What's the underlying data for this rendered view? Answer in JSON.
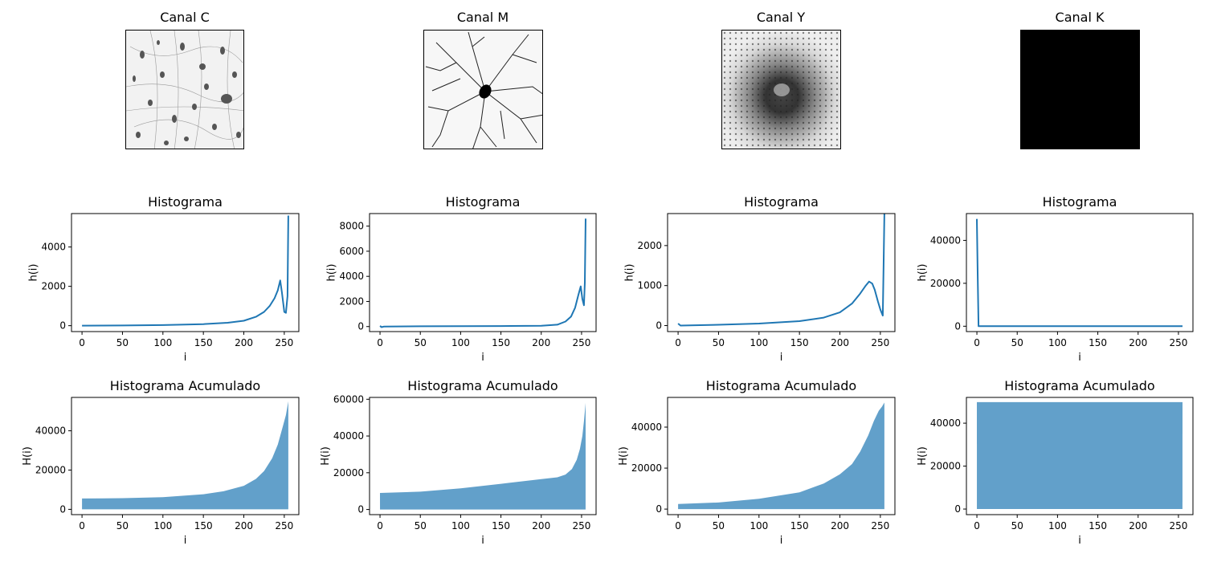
{
  "images": [
    {
      "title": "Canal C",
      "icon": "neuron-cells-thumbnail"
    },
    {
      "title": "Canal M",
      "icon": "neuron-dendrite-thumbnail"
    },
    {
      "title": "Canal Y",
      "icon": "retina-dots-thumbnail"
    },
    {
      "title": "Canal K",
      "icon": "black-square-thumbnail"
    }
  ],
  "colors": {
    "line": "#1f77b4",
    "fill": "#1f77b4",
    "fill_opacity": 0.7
  },
  "chart_data": [
    {
      "type": "line",
      "title": "Histograma",
      "xlabel": "i",
      "ylabel": "h(i)",
      "xlim": [
        -13,
        268
      ],
      "ylim": [
        -300,
        5700
      ],
      "xticks": [
        0,
        50,
        100,
        150,
        200,
        250
      ],
      "yticks": [
        0,
        2000,
        4000
      ],
      "x": [
        0,
        50,
        100,
        150,
        180,
        200,
        215,
        225,
        232,
        238,
        242,
        245,
        247,
        250,
        252,
        254,
        255
      ],
      "y": [
        0,
        10,
        30,
        80,
        150,
        250,
        450,
        700,
        1000,
        1400,
        1800,
        2300,
        1700,
        700,
        650,
        1500,
        5600
      ]
    },
    {
      "type": "line",
      "title": "Histograma",
      "xlabel": "i",
      "ylabel": "h(i)",
      "xlim": [
        -13,
        268
      ],
      "ylim": [
        -400,
        9000
      ],
      "xticks": [
        0,
        50,
        100,
        150,
        200,
        250
      ],
      "yticks": [
        0,
        2000,
        4000,
        6000,
        8000
      ],
      "x": [
        0,
        2,
        5,
        50,
        100,
        150,
        200,
        220,
        230,
        237,
        242,
        246,
        249,
        251,
        253,
        254,
        255
      ],
      "y": [
        50,
        -50,
        0,
        20,
        30,
        40,
        60,
        150,
        400,
        800,
        1500,
        2500,
        3200,
        2200,
        1700,
        3500,
        8600
      ]
    },
    {
      "type": "line",
      "title": "Histograma",
      "xlabel": "i",
      "ylabel": "h(i)",
      "xlim": [
        -13,
        268
      ],
      "ylim": [
        -150,
        2800
      ],
      "xticks": [
        0,
        50,
        100,
        150,
        200,
        250
      ],
      "yticks": [
        0,
        1000,
        2000
      ],
      "x": [
        0,
        3,
        50,
        100,
        150,
        180,
        200,
        215,
        225,
        232,
        236,
        240,
        243,
        247,
        250,
        253,
        254,
        255
      ],
      "y": [
        50,
        0,
        20,
        50,
        110,
        200,
        330,
        550,
        800,
        1000,
        1100,
        1050,
        900,
        600,
        400,
        250,
        1500,
        2800
      ]
    },
    {
      "type": "line",
      "title": "Histograma",
      "xlabel": "i",
      "ylabel": "h(i)",
      "xlim": [
        -13,
        268
      ],
      "ylim": [
        -2500,
        52500
      ],
      "xticks": [
        0,
        50,
        100,
        150,
        200,
        250
      ],
      "yticks": [
        0,
        20000,
        40000
      ],
      "x": [
        0,
        1,
        2,
        50,
        100,
        150,
        200,
        255
      ],
      "y": [
        50000,
        25000,
        0,
        0,
        0,
        0,
        0,
        0
      ]
    },
    {
      "type": "area",
      "title": "Histograma Acumulado",
      "xlabel": "i",
      "ylabel": "H(i)",
      "xlim": [
        -13,
        268
      ],
      "ylim": [
        -2700,
        57000
      ],
      "xticks": [
        0,
        50,
        100,
        150,
        200,
        250
      ],
      "yticks": [
        0,
        20000,
        40000
      ],
      "x": [
        0,
        50,
        100,
        150,
        175,
        200,
        215,
        225,
        235,
        242,
        248,
        252,
        255
      ],
      "y": [
        5500,
        5700,
        6200,
        7700,
        9200,
        12000,
        15500,
        19500,
        26000,
        33000,
        42000,
        48000,
        55000
      ]
    },
    {
      "type": "area",
      "title": "Histograma Acumulado",
      "xlabel": "i",
      "ylabel": "H(i)",
      "xlim": [
        -13,
        268
      ],
      "ylim": [
        -2800,
        61000
      ],
      "xticks": [
        0,
        50,
        100,
        150,
        200,
        250
      ],
      "yticks": [
        0,
        20000,
        40000,
        60000
      ],
      "x": [
        0,
        50,
        100,
        150,
        200,
        220,
        230,
        238,
        244,
        248,
        251,
        253,
        255
      ],
      "y": [
        9000,
        9700,
        11500,
        14000,
        16500,
        17500,
        19000,
        22000,
        27000,
        33000,
        40000,
        48000,
        58000
      ]
    },
    {
      "type": "area",
      "title": "Histograma Acumulado",
      "xlabel": "i",
      "ylabel": "H(i)",
      "xlim": [
        -13,
        268
      ],
      "ylim": [
        -2700,
        54500
      ],
      "xticks": [
        0,
        50,
        100,
        150,
        200,
        250
      ],
      "yticks": [
        0,
        20000,
        40000
      ],
      "x": [
        0,
        50,
        100,
        150,
        180,
        200,
        215,
        225,
        235,
        242,
        248,
        252,
        255
      ],
      "y": [
        2500,
        3200,
        5000,
        8200,
        12500,
        17000,
        22000,
        28000,
        36000,
        43000,
        48000,
        50000,
        52000
      ]
    },
    {
      "type": "area",
      "title": "Histograma Acumulado",
      "xlabel": "i",
      "ylabel": "H(i)",
      "xlim": [
        -13,
        268
      ],
      "ylim": [
        -2600,
        52000
      ],
      "xticks": [
        0,
        50,
        100,
        150,
        200,
        250
      ],
      "yticks": [
        0,
        20000,
        40000
      ],
      "x": [
        0,
        255
      ],
      "y": [
        49800,
        49800
      ]
    }
  ]
}
